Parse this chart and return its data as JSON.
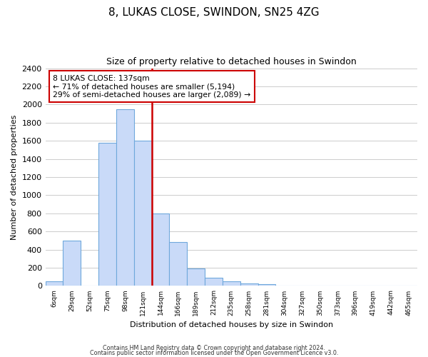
{
  "title": "8, LUKAS CLOSE, SWINDON, SN25 4ZG",
  "subtitle": "Size of property relative to detached houses in Swindon",
  "xlabel": "Distribution of detached houses by size in Swindon",
  "ylabel": "Number of detached properties",
  "bar_labels": [
    "6sqm",
    "29sqm",
    "52sqm",
    "75sqm",
    "98sqm",
    "121sqm",
    "144sqm",
    "166sqm",
    "189sqm",
    "212sqm",
    "235sqm",
    "258sqm",
    "281sqm",
    "304sqm",
    "327sqm",
    "350sqm",
    "373sqm",
    "396sqm",
    "419sqm",
    "442sqm",
    "465sqm"
  ],
  "bar_values": [
    50,
    500,
    0,
    1580,
    1950,
    1600,
    800,
    480,
    190,
    90,
    50,
    30,
    20,
    0,
    0,
    0,
    0,
    0,
    0,
    0,
    0
  ],
  "bar_color": "#c9daf8",
  "bar_edge_color": "#6fa8dc",
  "vline_color": "#cc0000",
  "annotation_title": "8 LUKAS CLOSE: 137sqm",
  "annotation_line1": "← 71% of detached houses are smaller (5,194)",
  "annotation_line2": "29% of semi-detached houses are larger (2,089) →",
  "annotation_box_color": "#ffffff",
  "annotation_box_edge": "#cc0000",
  "ylim": [
    0,
    2400
  ],
  "yticks": [
    0,
    200,
    400,
    600,
    800,
    1000,
    1200,
    1400,
    1600,
    1800,
    2000,
    2200,
    2400
  ],
  "footer1": "Contains HM Land Registry data © Crown copyright and database right 2024.",
  "footer2": "Contains public sector information licensed under the Open Government Licence v3.0.",
  "bg_color": "#ffffff",
  "grid_color": "#cccccc"
}
